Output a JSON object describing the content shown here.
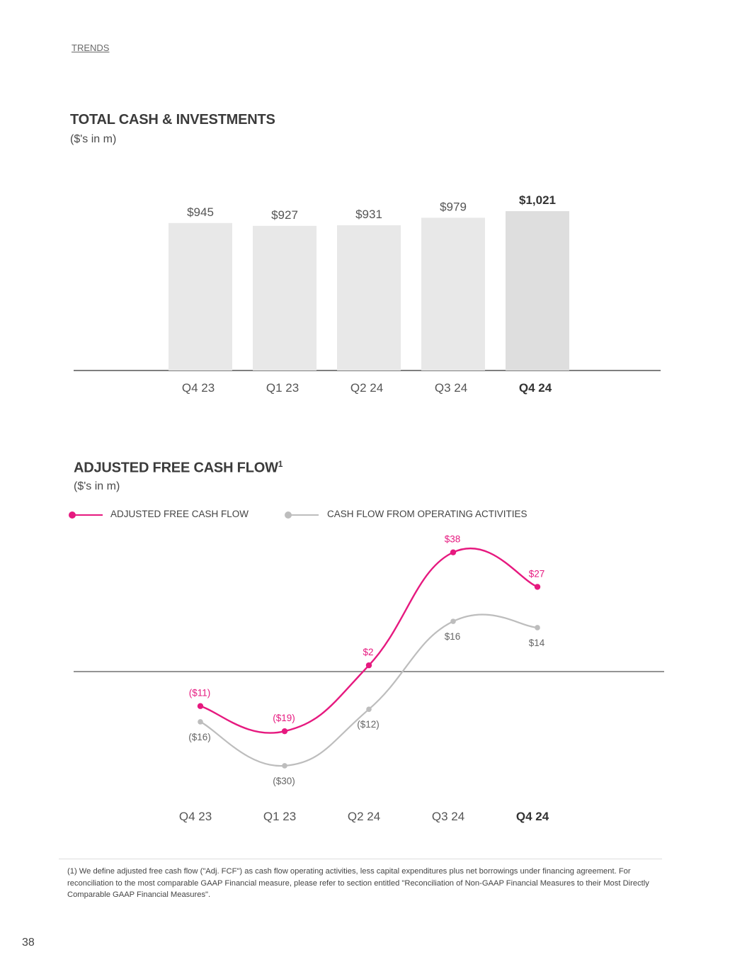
{
  "header": {
    "section_link": "TRENDS"
  },
  "charts": {
    "cash": {
      "title": "TOTAL CASH & INVESTMENTS",
      "subtitle": "($'s in m)"
    },
    "fcf": {
      "title": "ADJUSTED FREE CASH FLOW",
      "title_superscript": "1",
      "subtitle": "($'s in m)"
    }
  },
  "legend": {
    "adjusted_label": "ADJUSTED FREE CASH FLOW",
    "operating_label": "CASH FLOW FROM OPERATING ACTIVITIES"
  },
  "colors": {
    "accent": "#e6197f",
    "gray_series": "#bdbdbd",
    "bar": "#e8e8e8",
    "bar_highlight": "#dedede",
    "axis": "#555555"
  },
  "chart_data": [
    {
      "type": "bar",
      "title": "TOTAL CASH & INVESTMENTS",
      "subtitle": "($'s in m)",
      "categories": [
        "Q4 23",
        "Q1 23",
        "Q2 24",
        "Q3 24",
        "Q4 24"
      ],
      "values": [
        945,
        927,
        931,
        979,
        1021
      ],
      "value_labels": [
        "$945",
        "$927",
        "$931",
        "$979",
        "$1,021"
      ],
      "highlight_index": 4,
      "ylim": [
        0,
        1100
      ],
      "grid": false
    },
    {
      "type": "line",
      "title": "ADJUSTED FREE CASH FLOW",
      "subtitle": "($'s in m)",
      "categories": [
        "Q4 23",
        "Q1 23",
        "Q2 24",
        "Q3 24",
        "Q4 24"
      ],
      "highlight_index": 4,
      "ylim": [
        -35,
        42
      ],
      "grid": false,
      "legend_position": "top-left",
      "series": [
        {
          "name": "ADJUSTED FREE CASH FLOW",
          "values": [
            -11,
            -19,
            2,
            38,
            27
          ],
          "labels": [
            "($11)",
            "($19)",
            "$2",
            "$38",
            "$27"
          ],
          "color": "#e6197f"
        },
        {
          "name": "CASH FLOW FROM OPERATING ACTIVITIES",
          "values": [
            -16,
            -30,
            -12,
            16,
            14
          ],
          "labels": [
            "($16)",
            "($30)",
            "($12)",
            "$16",
            "$14"
          ],
          "color": "#bdbdbd"
        }
      ]
    }
  ],
  "footnote": "(1) We define adjusted free cash flow (\"Adj. FCF\") as cash flow operating activities, less capital expenditures plus net borrowings under financing agreement. For reconciliation to the most comparable GAAP Financial measure, please refer to section entitled \"Reconciliation of Non-GAAP Financial Measures to their Most Directly Comparable GAAP Financial Measures\".",
  "page_number": "38"
}
